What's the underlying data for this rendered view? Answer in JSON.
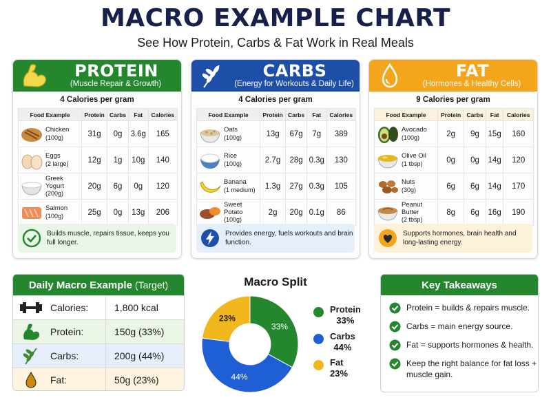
{
  "title": "MACRO EXAMPLE CHART",
  "subtitle": "See How Protein, Carbs & Fat Work in Real Meals",
  "columns": [
    "Food Example",
    "Protein",
    "Carbs",
    "Fat",
    "Calories"
  ],
  "colors": {
    "protein": "#24872e",
    "carbs": "#1e4fa8",
    "fat": "#f3a51c"
  },
  "cards": {
    "protein": {
      "title": "PROTEIN",
      "subtitle": "(Muscle Repair & Growth)",
      "calories_per_gram": "4 Calories per gram",
      "icon": "flexed-arm-icon",
      "rows": [
        {
          "name": "Chicken",
          "amount": "(100g)",
          "protein": "31g",
          "carbs": "0g",
          "fat": "3.6g",
          "calories": "165"
        },
        {
          "name": "Eggs",
          "amount": "(2 large)",
          "protein": "12g",
          "carbs": "1g",
          "fat": "10g",
          "calories": "140"
        },
        {
          "name": "Greek Yogurt",
          "amount": "(200g)",
          "protein": "20g",
          "carbs": "6g",
          "fat": "0g",
          "calories": "120"
        },
        {
          "name": "Salmon",
          "amount": "(100g)",
          "protein": "25g",
          "carbs": "0g",
          "fat": "13g",
          "calories": "206"
        }
      ],
      "note": "Builds muscle, repairs tissue, keeps you full longer."
    },
    "carbs": {
      "title": "CARBS",
      "subtitle": "(Energy for Workouts & Daily Life)",
      "calories_per_gram": "4 Calories per gram",
      "icon": "wheat-icon",
      "rows": [
        {
          "name": "Oats",
          "amount": "(100g)",
          "protein": "13g",
          "carbs": "67g",
          "fat": "7g",
          "calories": "389"
        },
        {
          "name": "Rice",
          "amount": "(100g)",
          "protein": "2.7g",
          "carbs": "28g",
          "fat": "0.3g",
          "calories": "130"
        },
        {
          "name": "Banana",
          "amount": "(1 medium)",
          "protein": "1.3g",
          "carbs": "27g",
          "fat": "0.3g",
          "calories": "105"
        },
        {
          "name": "Sweet Potato",
          "amount": "(100g)",
          "protein": "2g",
          "carbs": "20g",
          "fat": "0.1g",
          "calories": "86"
        }
      ],
      "note": "Provides energy, fuels workouts and brain function."
    },
    "fat": {
      "title": "FAT",
      "subtitle": "(Hormones & Healthy Cells)",
      "calories_per_gram": "9 Calories per gram",
      "icon": "oil-drop-icon",
      "rows": [
        {
          "name": "Avocado",
          "amount": "(100g)",
          "protein": "2g",
          "carbs": "9g",
          "fat": "15g",
          "calories": "160"
        },
        {
          "name": "Olive Oil",
          "amount": "(1 tbsp)",
          "protein": "0g",
          "carbs": "0g",
          "fat": "14g",
          "calories": "120"
        },
        {
          "name": "Nuts",
          "amount": "(30g)",
          "protein": "6g",
          "carbs": "6g",
          "fat": "14g",
          "calories": "170"
        },
        {
          "name": "Peanut Butter",
          "amount": "(2 tbsp)",
          "protein": "8g",
          "carbs": "6g",
          "fat": "16g",
          "calories": "190"
        }
      ],
      "note": "Supports hormones, brain health and long-lasting energy."
    }
  },
  "daily": {
    "title": "Daily Macro Example",
    "title_suffix": "(Target)",
    "rows": [
      {
        "label": "Calories:",
        "value": "1,800 kcal",
        "icon": "dumbbell-icon"
      },
      {
        "label": "Protein:",
        "value": "150g (33%)",
        "icon": "flexed-arm-icon"
      },
      {
        "label": "Carbs:",
        "value": "200g (44%)",
        "icon": "wheat-icon"
      },
      {
        "label": "Fat:",
        "value": "50g (23%)",
        "icon": "oil-drop-icon"
      }
    ]
  },
  "takeaways": {
    "title": "Key Takeaways",
    "items": [
      "Protein = builds & repairs muscle.",
      "Carbs = main energy source.",
      "Fat = supports hormones & health.",
      "Keep the right balance for fat loss + muscle gain."
    ]
  },
  "chart_data": {
    "type": "pie",
    "title": "Macro Split",
    "donut": true,
    "legend_position": "right",
    "categories": [
      "Protein",
      "Carbs",
      "Fat"
    ],
    "values": [
      33,
      44,
      23
    ],
    "labels": [
      "33%",
      "44%",
      "23%"
    ],
    "colors": [
      "#24872e",
      "#1f5fd6",
      "#f3b71e"
    ]
  }
}
